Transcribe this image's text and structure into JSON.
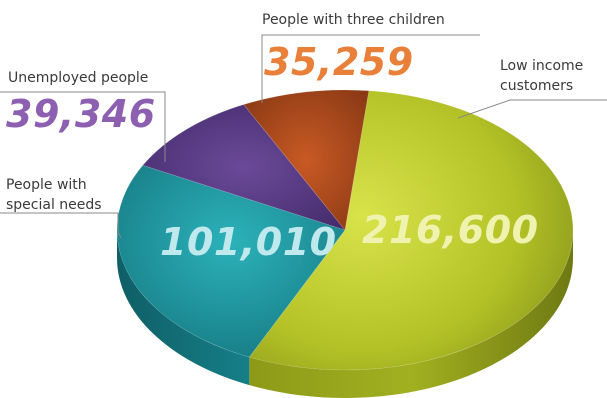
{
  "chart_data": {
    "type": "pie",
    "title": "",
    "categories": [
      "Low income customers",
      "People with special needs",
      "Unemployed people",
      "People with three children"
    ],
    "values": [
      216600,
      101010,
      39346,
      35259
    ],
    "value_labels": [
      "216,600",
      "101,010",
      "39,346",
      "35,259"
    ],
    "colors": [
      "#b7c82a",
      "#1f9aa0",
      "#5b3b86",
      "#b04a1e"
    ],
    "label_colors": [
      "#f0f2b0",
      "#bfe9ec",
      "#8d5fb0",
      "#e9803a"
    ]
  },
  "callouts": {
    "low_income": {
      "line1": "Low income",
      "line2": "customers"
    },
    "special_needs": {
      "line1": "People with",
      "line2": "special needs"
    },
    "unemployed": {
      "line1": "Unemployed people"
    },
    "three_children": {
      "line1": "People with three children"
    }
  }
}
